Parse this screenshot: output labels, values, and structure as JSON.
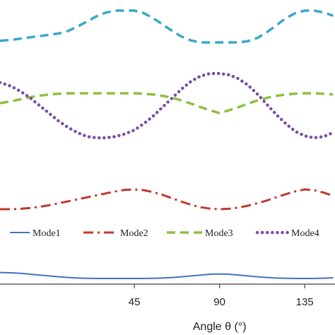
{
  "chart_data": {
    "type": "line",
    "xlabel": "Angle θ (°)",
    "x_ticks": [
      "45",
      "90",
      "135"
    ],
    "xlim": [
      -26,
      151
    ],
    "grid": false,
    "legend_placement": "inside-lower",
    "x": [
      -26,
      -20,
      -15,
      -10,
      -5,
      0,
      5,
      10,
      15,
      20,
      25,
      30,
      35,
      40,
      45,
      50,
      55,
      60,
      65,
      70,
      75,
      80,
      85,
      90,
      95,
      100,
      105,
      110,
      115,
      120,
      125,
      130,
      135,
      140,
      145,
      150
    ],
    "series": [
      {
        "name": "Mode1",
        "color": "#4472c4",
        "style": "solid",
        "values": [
          0.42,
          0.4,
          0.36,
          0.3,
          0.24,
          0.18,
          0.12,
          0.07,
          0.03,
          0.01,
          0.0,
          0.0,
          0.0,
          0.0,
          0.0,
          0.0,
          0.01,
          0.03,
          0.07,
          0.12,
          0.18,
          0.24,
          0.3,
          0.32,
          0.3,
          0.24,
          0.18,
          0.12,
          0.07,
          0.03,
          0.01,
          0.0,
          0.0,
          0.0,
          0.02,
          0.05
        ]
      },
      {
        "name": "Mode2",
        "color": "#c0392b",
        "style": "dashdot",
        "values": [
          0.0,
          0.0,
          0.02,
          0.06,
          0.12,
          0.2,
          0.3,
          0.4,
          0.5,
          0.6,
          0.7,
          0.8,
          0.9,
          0.98,
          1.0,
          0.96,
          0.86,
          0.72,
          0.55,
          0.38,
          0.22,
          0.1,
          0.03,
          0.0,
          0.02,
          0.08,
          0.18,
          0.3,
          0.44,
          0.6,
          0.76,
          0.9,
          1.0,
          0.96,
          0.84,
          0.68
        ]
      },
      {
        "name": "Mode3",
        "color": "#8dc03f",
        "style": "dashed",
        "values": [
          0.5,
          0.6,
          0.7,
          0.8,
          0.88,
          0.94,
          0.98,
          1.0,
          1.0,
          1.0,
          1.0,
          1.0,
          1.0,
          1.0,
          1.0,
          0.98,
          0.94,
          0.87,
          0.77,
          0.64,
          0.48,
          0.3,
          0.14,
          0.0,
          0.14,
          0.3,
          0.48,
          0.64,
          0.77,
          0.87,
          0.94,
          0.98,
          1.0,
          1.0,
          0.98,
          0.94
        ]
      },
      {
        "name": "Mode4",
        "color": "#7a4fa3",
        "style": "dotted",
        "values": [
          0.86,
          0.8,
          0.72,
          0.62,
          0.5,
          0.38,
          0.26,
          0.16,
          0.08,
          0.02,
          0.0,
          0.0,
          0.02,
          0.06,
          0.12,
          0.22,
          0.34,
          0.48,
          0.62,
          0.76,
          0.88,
          0.96,
          1.0,
          1.0,
          0.98,
          0.92,
          0.82,
          0.68,
          0.52,
          0.36,
          0.22,
          0.1,
          0.03,
          0.0,
          0.02,
          0.08
        ]
      },
      {
        "name": "",
        "color": "#3aa8c8",
        "style": "dashed",
        "values": [
          0.05,
          0.08,
          0.12,
          0.16,
          0.2,
          0.24,
          0.28,
          0.36,
          0.5,
          0.66,
          0.82,
          0.94,
          1.0,
          1.0,
          1.0,
          0.92,
          0.76,
          0.56,
          0.36,
          0.18,
          0.06,
          0.0,
          0.0,
          0.0,
          0.0,
          0.0,
          0.04,
          0.14,
          0.32,
          0.54,
          0.76,
          0.92,
          1.0,
          1.0,
          0.94,
          0.84
        ]
      }
    ]
  }
}
